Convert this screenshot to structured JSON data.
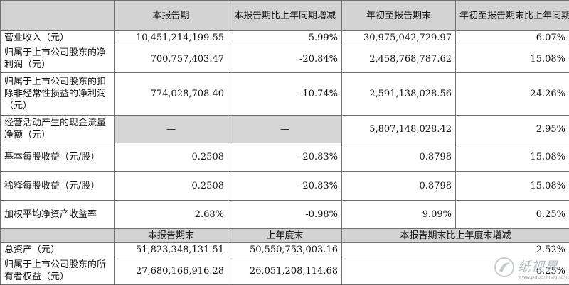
{
  "header": {
    "col1": "本报告期",
    "col2": "本报告期比上年同期增减",
    "col3": "年初至报告期末",
    "col4": "年初至报告期末比上年同期增减"
  },
  "rows": [
    {
      "label": "营业收入（元）",
      "v1": "10,451,214,199.55",
      "v2": "5.99%",
      "v3": "30,975,042,729.97",
      "v4": "6.07%"
    },
    {
      "label": "归属于上市公司股东的净利润（元）",
      "v1": "700,757,403.47",
      "v2": "-20.84%",
      "v3": "2,458,768,787.62",
      "v4": "15.08%"
    },
    {
      "label": "归属于上市公司股东的扣除非经常性损益的净利润（元）",
      "v1": "774,028,708.40",
      "v2": "-10.74%",
      "v3": "2,591,138,028.56",
      "v4": "24.26%"
    },
    {
      "label": "经营活动产生的现金流量净额（元）",
      "v1": "—",
      "v2": "—",
      "v3": "5,807,148,028.42",
      "v4": "2.95%"
    },
    {
      "label": "基本每股收益（元/股）",
      "v1": "0.2508",
      "v2": "-20.83%",
      "v3": "0.8798",
      "v4": "15.08%"
    },
    {
      "label": "稀释每股收益（元/股）",
      "v1": "0.2508",
      "v2": "-20.83%",
      "v3": "0.8798",
      "v4": "15.08%"
    },
    {
      "label": "加权平均净资产收益率",
      "v1": "2.68%",
      "v2": "-0.98%",
      "v3": "9.09%",
      "v4": "0.25%"
    }
  ],
  "subheader": {
    "col1": "本报告期末",
    "col2": "上年度末",
    "col34": "本报告期末比上年度末增减"
  },
  "bottom_rows": [
    {
      "label": "总资产（元）",
      "v1": "51,823,348,131.51",
      "v2": "50,550,753,003.16",
      "v34": "2.52%"
    },
    {
      "label": "归属于上市公司股东的所有者权益（元）",
      "v1": "27,680,166,916.28",
      "v2": "26,051,208,114.68",
      "v34": "6.25%"
    }
  ],
  "watermark": {
    "text": "纸视界",
    "url": "www.paperinsight.net"
  }
}
